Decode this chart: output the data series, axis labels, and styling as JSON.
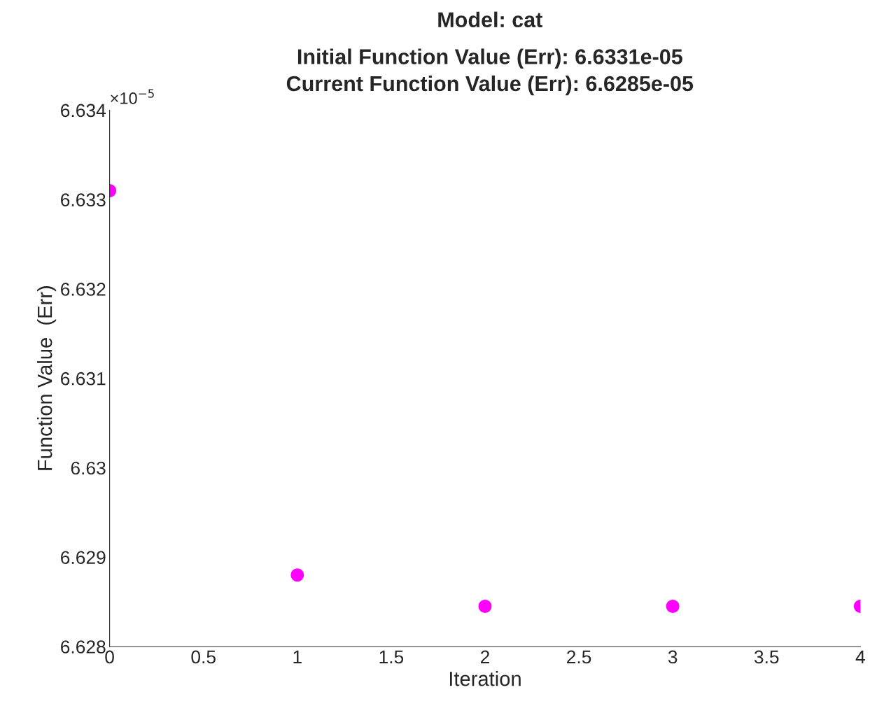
{
  "chart_data": {
    "type": "scatter",
    "title": "Model: cat",
    "subtitle": "Initial Function Value (Err): 6.6331e-05\nCurrent Function Value (Err): 6.6285e-05",
    "xlabel": "Iteration",
    "ylabel": "Function Value  (Err)",
    "x": [
      0,
      1,
      2,
      3,
      4
    ],
    "series": [
      {
        "color": "#ff00ff",
        "values": [
          6.6331,
          6.6288,
          6.62845,
          6.62845,
          6.62845
        ]
      }
    ],
    "marker": "circle",
    "xlim": [
      0,
      4
    ],
    "xticks": [
      0,
      0.5,
      1,
      1.5,
      2,
      2.5,
      3,
      3.5,
      4
    ],
    "ylim": [
      6.628,
      6.634
    ],
    "yticks": [
      6.628,
      6.629,
      6.63,
      6.631,
      6.632,
      6.633,
      6.634
    ],
    "annotations": [
      "×10$^{−5}$"
    ],
    "grid": false,
    "legend": false
  }
}
